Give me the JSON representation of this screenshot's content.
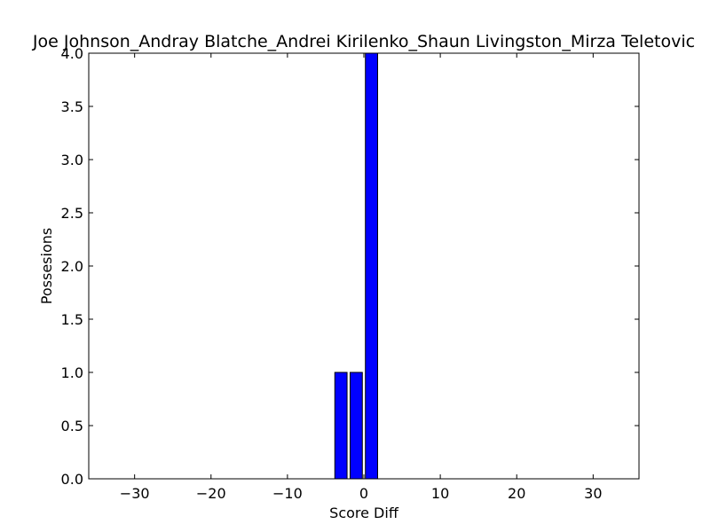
{
  "chart_data": {
    "type": "bar",
    "title": "Joe Johnson_Andray Blatche_Andrei Kirilenko_Shaun Livingston_Mirza Teletovic",
    "xlabel": "Score Diff",
    "ylabel": "Possesions",
    "xlim": [
      -36,
      36
    ],
    "ylim": [
      0,
      4
    ],
    "bar_width": 1.6,
    "x": [
      -3,
      -1,
      1
    ],
    "values": [
      1,
      1,
      4
    ],
    "xticks": [
      -30,
      -20,
      -10,
      0,
      10,
      20,
      30
    ],
    "xtick_labels": [
      "−30",
      "−20",
      "−10",
      "0",
      "10",
      "20",
      "30"
    ],
    "yticks": [
      0,
      0.5,
      1,
      1.5,
      2,
      2.5,
      3,
      3.5,
      4
    ],
    "ytick_labels": [
      "0.0",
      "0.5",
      "1.0",
      "1.5",
      "2.0",
      "2.5",
      "3.0",
      "3.5",
      "4.0"
    ],
    "grid": false,
    "bar_color": "#0000ff"
  }
}
